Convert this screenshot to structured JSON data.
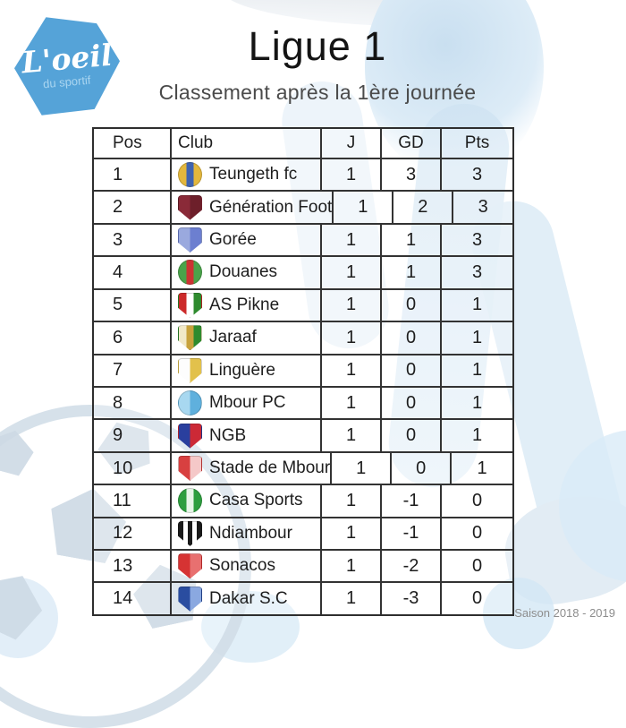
{
  "brand": {
    "logo_text": "L'oeil",
    "logo_subtext": "du sportif",
    "logo_bg_color": "#55a3d8"
  },
  "chart_data": {
    "type": "table",
    "title": "Ligue 1",
    "subtitle": "Classement après la 1ère journée",
    "columns": [
      "Pos",
      "Club",
      "J",
      "GD",
      "Pts"
    ],
    "rows": [
      [
        1,
        "Teungeth fc",
        1,
        3,
        3
      ],
      [
        2,
        "Génération Foot",
        1,
        2,
        3
      ],
      [
        3,
        "Gorée",
        1,
        1,
        3
      ],
      [
        4,
        "Douanes",
        1,
        1,
        3
      ],
      [
        5,
        "AS Pikne",
        1,
        0,
        1
      ],
      [
        6,
        "Jaraaf",
        1,
        0,
        1
      ],
      [
        7,
        "Linguère",
        1,
        0,
        1
      ],
      [
        8,
        "Mbour PC",
        1,
        0,
        1
      ],
      [
        9,
        "NGB",
        1,
        0,
        1
      ],
      [
        10,
        "Stade de Mbour",
        1,
        0,
        1
      ],
      [
        11,
        "Casa Sports",
        1,
        -1,
        0
      ],
      [
        12,
        "Ndiambour",
        1,
        -1,
        0
      ],
      [
        13,
        "Sonacos",
        1,
        -2,
        0
      ],
      [
        14,
        "Dakar S.C",
        1,
        -3,
        0
      ]
    ]
  },
  "crests": [
    {
      "icon": "teungeth-crest-icon",
      "shape": "circle",
      "colors": [
        "#e3b73c",
        "#3f63b0",
        "#e3b73c"
      ]
    },
    {
      "icon": "generation-foot-crest-icon",
      "shape": "shield",
      "colors": [
        "#8a2a38",
        "#6d1f2a"
      ]
    },
    {
      "icon": "goree-crest-icon",
      "shape": "shield",
      "colors": [
        "#9aa9de",
        "#6c7fd0"
      ]
    },
    {
      "icon": "douanes-crest-icon",
      "shape": "circle",
      "colors": [
        "#4aa34a",
        "#cc3333",
        "#4aa34a"
      ]
    },
    {
      "icon": "as-pikne-crest-icon",
      "shape": "shield",
      "colors": [
        "#cc2a2a",
        "#ffffff",
        "#2e8b2e"
      ]
    },
    {
      "icon": "jaraaf-crest-icon",
      "shape": "shield",
      "colors": [
        "#f1e9c8",
        "#c8a23c",
        "#2e8b2e"
      ]
    },
    {
      "icon": "linguere-crest-icon",
      "shape": "shield",
      "colors": [
        "#fdfdfd",
        "#e2c14c"
      ]
    },
    {
      "icon": "mbour-pc-crest-icon",
      "shape": "circle",
      "colors": [
        "#a8d8f0",
        "#5fb0dd"
      ]
    },
    {
      "icon": "ngb-crest-icon",
      "shape": "shield",
      "colors": [
        "#2a3f9e",
        "#cc2936"
      ]
    },
    {
      "icon": "stade-de-mbour-crest-icon",
      "shape": "shield",
      "colors": [
        "#d84040",
        "#f5c8c8"
      ]
    },
    {
      "icon": "casa-sports-crest-icon",
      "shape": "circle",
      "colors": [
        "#2e9e3f",
        "#e8f5e8",
        "#2e9e3f"
      ]
    },
    {
      "icon": "ndiambour-crest-icon",
      "shape": "shield",
      "colors": [
        "#1a1a1a",
        "#ffffff",
        "#1a1a1a",
        "#ffffff",
        "#1a1a1a"
      ]
    },
    {
      "icon": "sonacos-crest-icon",
      "shape": "shield",
      "colors": [
        "#d63333",
        "#e87070"
      ]
    },
    {
      "icon": "dakar-sc-crest-icon",
      "shape": "shield",
      "colors": [
        "#2a4da0",
        "#8aa8e0"
      ]
    }
  ],
  "footer": {
    "season": "Saison 2018 - 2019"
  }
}
